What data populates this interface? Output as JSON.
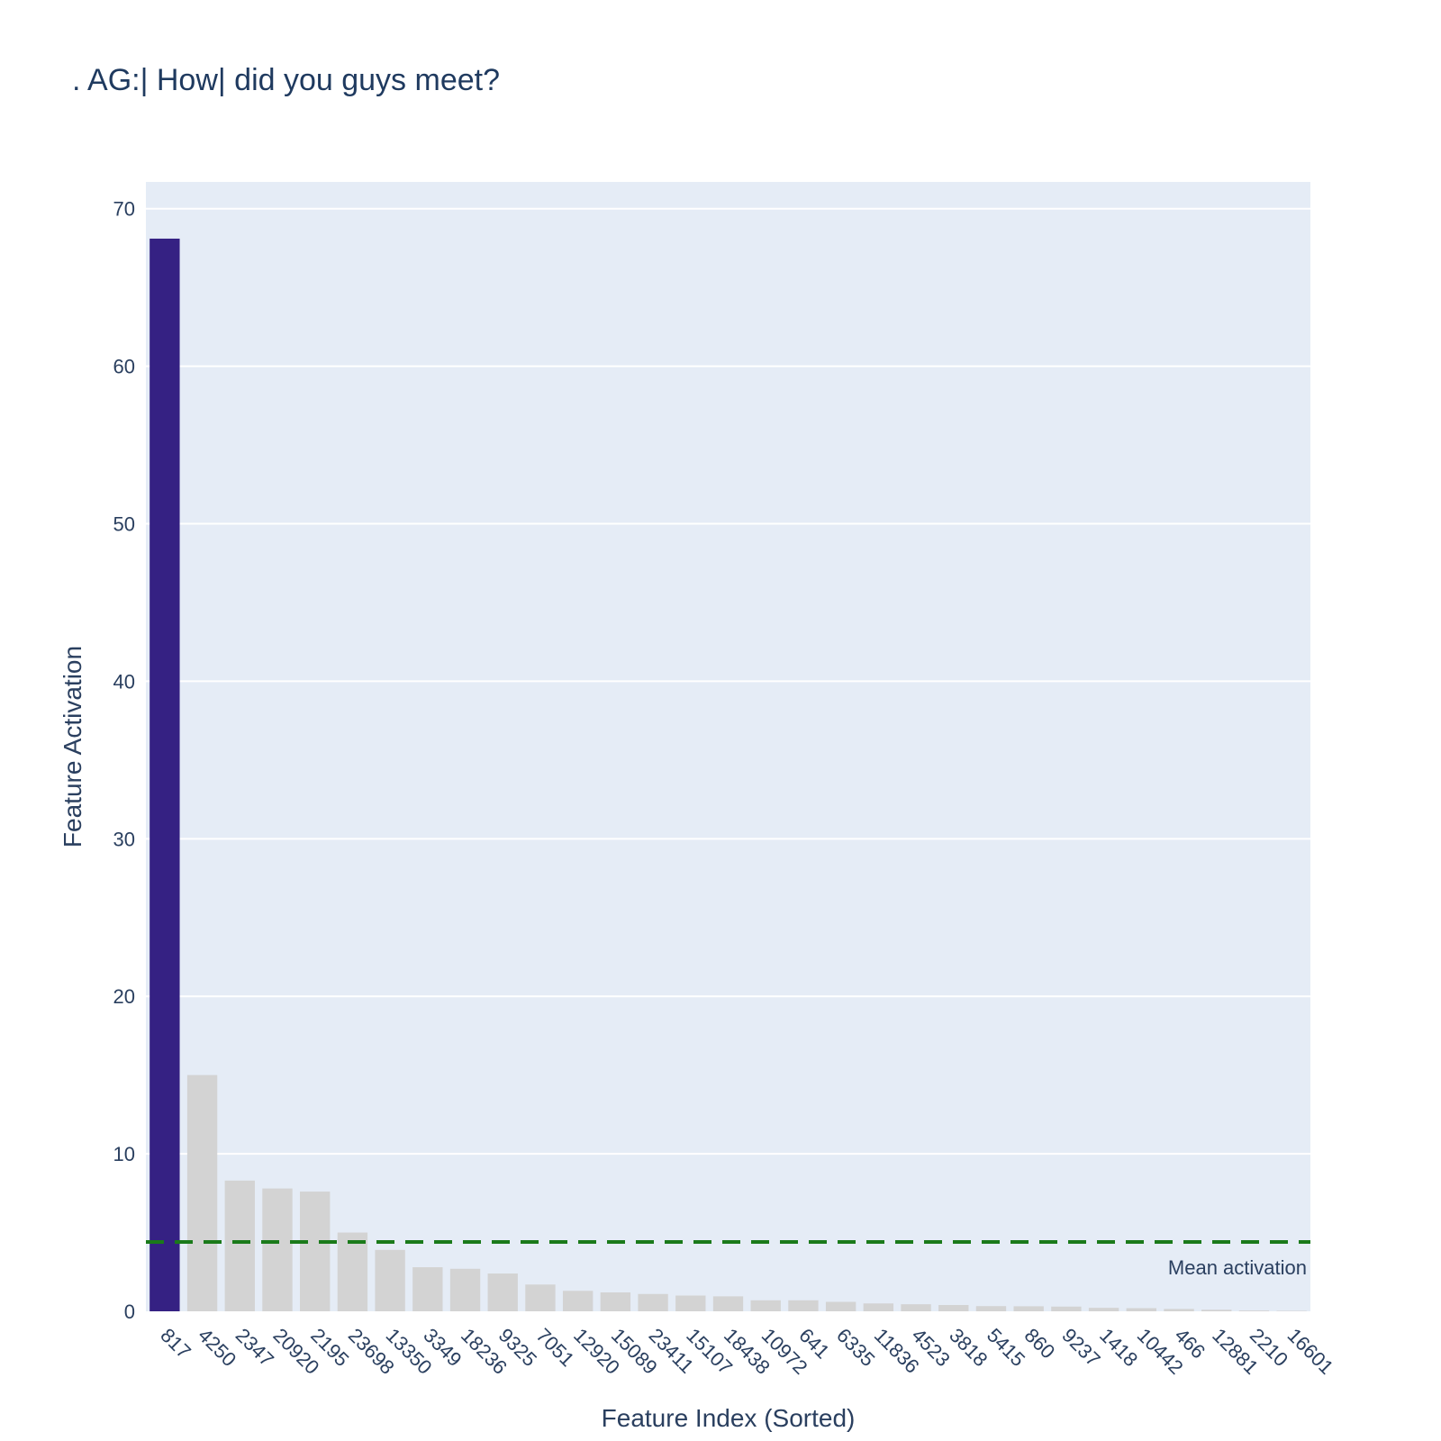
{
  "chart_data": {
    "type": "bar",
    "title": ". AG:| How| did you guys meet?",
    "xlabel": "Feature Index (Sorted)",
    "ylabel": "Feature Activation",
    "ylim": [
      0,
      71.7
    ],
    "yticks": [
      0,
      10,
      20,
      30,
      40,
      50,
      60,
      70
    ],
    "grid": true,
    "categories": [
      "817",
      "4250",
      "2347",
      "20920",
      "2195",
      "23698",
      "13350",
      "3349",
      "18236",
      "9325",
      "7051",
      "12920",
      "15089",
      "23411",
      "15107",
      "18438",
      "10972",
      "641",
      "6335",
      "11836",
      "4523",
      "3818",
      "5415",
      "860",
      "9237",
      "1418",
      "10442",
      "466",
      "12881",
      "2210",
      "16601"
    ],
    "values": [
      68.1,
      15.0,
      8.3,
      7.8,
      7.6,
      5.0,
      3.9,
      2.8,
      2.7,
      2.4,
      1.7,
      1.3,
      1.2,
      1.1,
      1.0,
      0.95,
      0.7,
      0.7,
      0.6,
      0.5,
      0.45,
      0.4,
      0.33,
      0.32,
      0.3,
      0.22,
      0.2,
      0.15,
      0.1,
      0.05,
      0.03
    ],
    "highlight_index": 0,
    "highlight_color": "#352183",
    "bar_color": "#d3d3d3",
    "mean_line": {
      "value": 4.4,
      "label": "Mean activation",
      "color": "#1a7a1a"
    },
    "plot_background": "#e5ecf6"
  }
}
